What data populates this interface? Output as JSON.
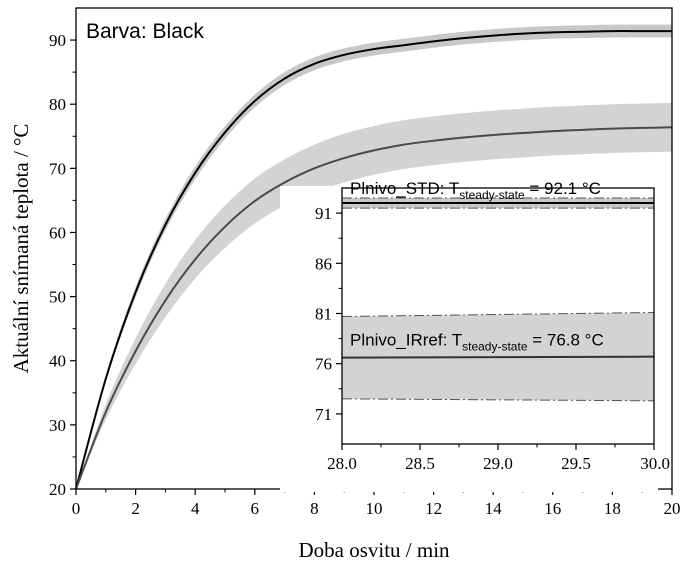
{
  "chart_data": [
    {
      "type": "line",
      "panel": "main",
      "annotation": "Barva: Black",
      "xlabel": "Doba osvitu / min",
      "ylabel": "Aktuální snímaná teplota / °C",
      "xlim": [
        0,
        20
      ],
      "ylim": [
        20,
        95
      ],
      "xticks": [
        "0",
        "2",
        "4",
        "6",
        "8",
        "10",
        "12",
        "14",
        "16",
        "18",
        "20"
      ],
      "yticks": [
        "20",
        "30",
        "40",
        "50",
        "60",
        "70",
        "80",
        "90"
      ],
      "grid": false,
      "series": [
        {
          "color": "#000000",
          "band_color": "#c8c8c8",
          "x": [
            0,
            1,
            2,
            3,
            4,
            5,
            6,
            7,
            8,
            9,
            10,
            11,
            12,
            13,
            14,
            15,
            16,
            17,
            18,
            19,
            20
          ],
          "values": [
            20,
            37.2,
            50.7,
            61.2,
            69.3,
            75.6,
            80.5,
            84.0,
            86.3,
            87.7,
            88.6,
            89.2,
            89.8,
            90.3,
            90.7,
            91.0,
            91.2,
            91.3,
            91.4,
            91.4,
            91.4
          ],
          "band_halfwidth": [
            0,
            0.5,
            0.8,
            0.9,
            1.0,
            1.0,
            1.0,
            1.0,
            1.0,
            1.0,
            1.0,
            1.0,
            1.0,
            1.0,
            1.0,
            1.0,
            1.0,
            1.0,
            1.0,
            1.0,
            1.0
          ]
        },
        {
          "color": "#4a4a4a",
          "band_color": "#d3d3d3",
          "x": [
            0,
            1,
            2,
            3,
            4,
            5,
            6,
            7,
            8,
            9,
            10,
            11,
            12,
            13,
            14,
            15,
            16,
            17,
            18,
            19,
            20
          ],
          "values": [
            20,
            32.0,
            41.5,
            49.4,
            55.8,
            60.9,
            64.9,
            67.8,
            70.0,
            71.6,
            72.8,
            73.7,
            74.3,
            74.8,
            75.2,
            75.5,
            75.8,
            76.0,
            76.2,
            76.3,
            76.4
          ],
          "band_halfwidth": [
            0,
            1.2,
            2.0,
            2.6,
            3.0,
            3.3,
            3.5,
            3.6,
            3.7,
            3.8,
            3.8,
            3.8,
            3.8,
            3.8,
            3.8,
            3.8,
            3.8,
            3.8,
            3.8,
            3.8,
            3.8
          ]
        }
      ]
    },
    {
      "type": "line",
      "panel": "inset",
      "xlim": [
        28.0,
        30.0
      ],
      "ylim": [
        68,
        93.5
      ],
      "xticks": [
        "28.0",
        "28.5",
        "29.0",
        "29.5",
        "30.0"
      ],
      "yticks": [
        "71",
        "76",
        "81",
        "86",
        "91"
      ],
      "annotations": [
        {
          "prefix": "Plnivo_STD: T",
          "subscript": "steady-state",
          "suffix": " = 92.1 °C"
        },
        {
          "prefix": "Plnivo_IRref: T",
          "subscript": "steady-state",
          "suffix": " = 76.8 °C"
        }
      ],
      "series": [
        {
          "color": "#000000",
          "band_color": "#c8c8c8",
          "x": [
            28.0,
            30.0
          ],
          "values": [
            92.0,
            92.0
          ],
          "band_halfwidth": [
            0.5,
            0.5
          ]
        },
        {
          "color": "#333333",
          "band_color": "#d3d3d3",
          "x": [
            28.0,
            30.0
          ],
          "values": [
            76.6,
            76.7
          ],
          "band_halfwidth": [
            4.1,
            4.4
          ]
        }
      ]
    }
  ]
}
